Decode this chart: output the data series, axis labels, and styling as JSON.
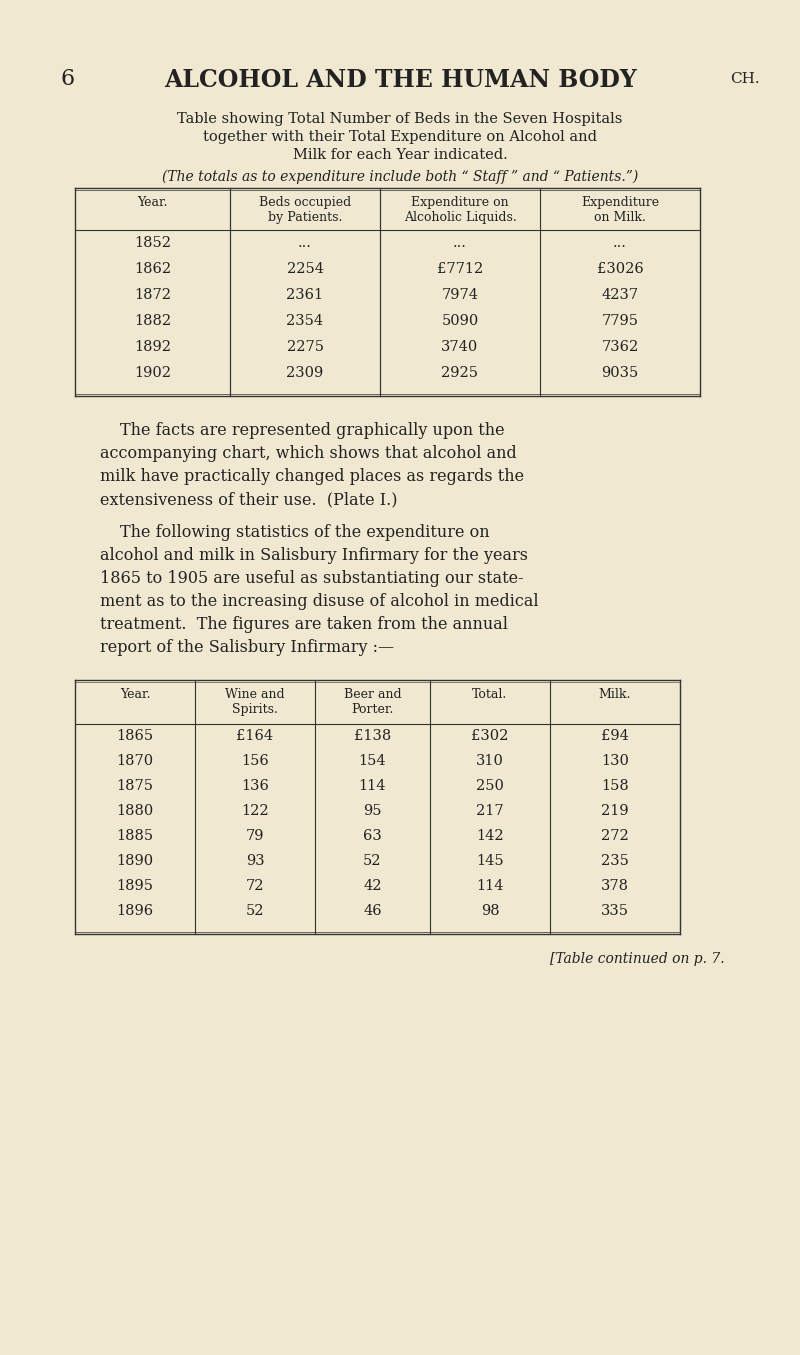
{
  "bg_color": "#f0e8d0",
  "page_number": "6",
  "page_title": "ALCOHOL AND THE HUMAN BODY",
  "page_title_suffix": "CH.",
  "table1_caption_lines": [
    "Table showing Total Number of Beds in the Seven Hospitals",
    "together with their Total Expenditure on Alcohol and",
    "Milk for each Year indicated."
  ],
  "table1_note": "(The totals as to expenditure include both “ Staff ” and “ Patients.”)",
  "table1_headers": [
    "Year.",
    "Beds occupied\nby Patients.",
    "Expenditure on\nAlcoholic Liquids.",
    "Expenditure\non Milk."
  ],
  "table1_rows": [
    [
      "1852",
      "...",
      "...",
      "..."
    ],
    [
      "1862",
      "2254",
      "£7712",
      "£3026"
    ],
    [
      "1872",
      "2361",
      "7974",
      "4237"
    ],
    [
      "1882",
      "2354",
      "5090",
      "7795"
    ],
    [
      "1892",
      "2275",
      "3740",
      "7362"
    ],
    [
      "1902",
      "2309",
      "2925",
      "9035"
    ]
  ],
  "paragraph1": "The facts are represented graphically upon the accompanying chart, which shows that alcohol and milk have practically changed places as regards the extensiveness of their use.  (Plate I.)",
  "paragraph2_lines": [
    "The following statistics of the expenditure on",
    "alcohol and milk in Salisbury Infirmary for the years",
    "1865 to 1905 are useful as substantiating our state-",
    "ment as to the increasing disuse of alcohol in medical",
    "treatment.  The figures are taken from the annual",
    "report of the Salisbury Infirmary :—"
  ],
  "table2_headers": [
    "Year.",
    "Wine and\nSpirits.",
    "Beer and\nPorter.",
    "Total.",
    "Milk."
  ],
  "table2_rows": [
    [
      "1865",
      "£164",
      "£138",
      "£302",
      "£94"
    ],
    [
      "1870",
      "156",
      "154",
      "310",
      "130"
    ],
    [
      "1875",
      "136",
      "114",
      "250",
      "158"
    ],
    [
      "1880",
      "122",
      "95",
      "217",
      "219"
    ],
    [
      "1885",
      "79",
      "63",
      "142",
      "272"
    ],
    [
      "1890",
      "93",
      "52",
      "145",
      "235"
    ],
    [
      "1895",
      "72",
      "42",
      "114",
      "378"
    ],
    [
      "1896",
      "52",
      "46",
      "98",
      "335"
    ]
  ],
  "table_continued": "[Table continued on p. 7."
}
